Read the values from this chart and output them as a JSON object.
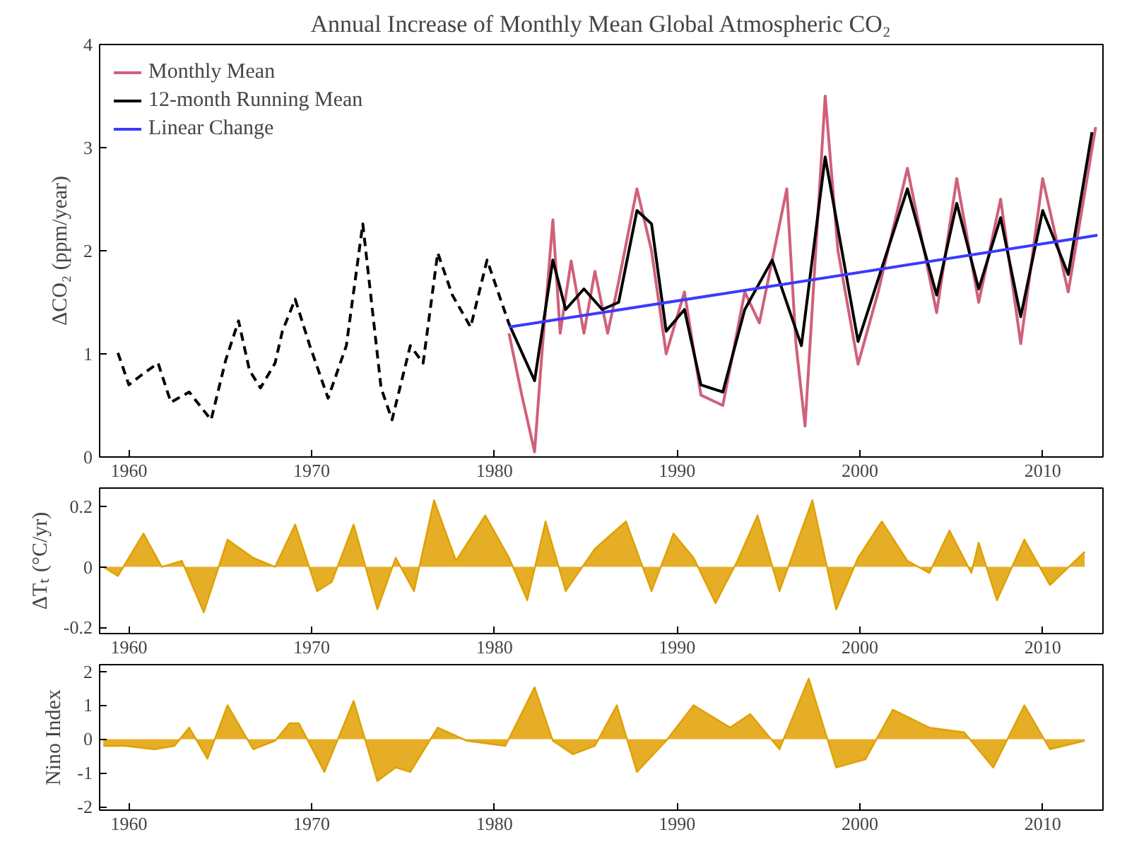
{
  "chart_data": [
    {
      "type": "line",
      "title": "Annual Increase of Monthly Mean Global Atmospheric CO₂",
      "ylabel": "ΔCO₂ (ppm/year)",
      "xlim": [
        1958.4,
        2013.3
      ],
      "ylim": [
        0,
        4
      ],
      "xticks": [
        1960,
        1970,
        1980,
        1990,
        2000,
        2010
      ],
      "yticks": [
        0,
        1,
        2,
        3,
        4
      ],
      "legend": "top left",
      "grid": false,
      "series": [
        {
          "name": "Monthly Mean",
          "color": "#d0607a",
          "line_style": "solid",
          "x": [
            1980.8,
            1981.5,
            1982.2,
            1982.6,
            1983.2,
            1983.6,
            1984.2,
            1984.9,
            1985.5,
            1986.2,
            1986.8,
            1987.8,
            1988.6,
            1989.4,
            1990.4,
            1991.3,
            1992.5,
            1993.7,
            1994.5,
            1996.0,
            1996.5,
            1997.0,
            1998.1,
            1998.8,
            1999.9,
            2001.0,
            2002.6,
            2004.2,
            2005.3,
            2006.5,
            2007.7,
            2008.8,
            2010.0,
            2011.4,
            2012.9
          ],
          "values": [
            1.2,
            0.6,
            0.05,
            1.0,
            2.3,
            1.2,
            1.9,
            1.2,
            1.8,
            1.2,
            1.7,
            2.6,
            2.0,
            1.0,
            1.6,
            0.6,
            0.5,
            1.6,
            1.3,
            2.6,
            1.1,
            0.3,
            3.5,
            2.0,
            0.9,
            1.6,
            2.8,
            1.4,
            2.7,
            1.5,
            2.5,
            1.1,
            2.7,
            1.6,
            3.2
          ]
        },
        {
          "color": "#000000",
          "line_style": "dashed",
          "x": [
            1959.4,
            1960.0,
            1960.8,
            1961.6,
            1962.3,
            1963.3,
            1964.5,
            1965.3,
            1966.0,
            1966.6,
            1967.2,
            1968.0,
            1968.4,
            1969.1,
            1969.9,
            1970.9,
            1971.9,
            1972.8,
            1973.8,
            1974.4,
            1975.4,
            1976.1,
            1976.9,
            1977.7,
            1978.7,
            1979.6,
            1980.8
          ],
          "values": [
            1.01,
            0.7,
            0.81,
            0.91,
            0.53,
            0.63,
            0.36,
            0.94,
            1.32,
            0.84,
            0.67,
            0.91,
            1.22,
            1.53,
            1.08,
            0.57,
            1.08,
            2.26,
            0.67,
            0.36,
            1.08,
            0.91,
            1.98,
            1.57,
            1.26,
            1.91,
            1.29
          ]
        },
        {
          "name": "12-month Running Mean",
          "color": "#000000",
          "line_style": "solid",
          "x": [
            1980.8,
            1982.2,
            1983.2,
            1983.9,
            1984.9,
            1985.9,
            1986.8,
            1987.8,
            1988.6,
            1989.4,
            1990.4,
            1991.3,
            1992.5,
            1993.7,
            1995.2,
            1996.8,
            1998.1,
            1999.9,
            2002.6,
            2004.2,
            2005.3,
            2006.5,
            2007.7,
            2008.8,
            2010.0,
            2011.4,
            2012.7
          ],
          "values": [
            1.29,
            0.74,
            1.91,
            1.43,
            1.63,
            1.43,
            1.5,
            2.39,
            2.26,
            1.22,
            1.43,
            0.7,
            0.63,
            1.43,
            1.91,
            1.08,
            2.91,
            1.12,
            2.6,
            1.57,
            2.46,
            1.63,
            2.32,
            1.36,
            2.39,
            1.77,
            3.15
          ]
        },
        {
          "name": "Linear Change",
          "color": "#3a3aff",
          "line_style": "solid",
          "x": [
            1980.8,
            2013.0
          ],
          "values": [
            1.26,
            2.15
          ]
        }
      ]
    },
    {
      "type": "area",
      "ylabel": "ΔTₜ (°C/yr)",
      "xlim": [
        1958.4,
        2013.3
      ],
      "ylim": [
        -0.22,
        0.26
      ],
      "xticks": [
        1960,
        1970,
        1980,
        1990,
        2000,
        2010
      ],
      "yticks": [
        -0.2,
        0,
        0.2
      ],
      "grid": false,
      "series": [
        {
          "color": "#e0a000",
          "x": [
            1958.6,
            1959.4,
            1960.8,
            1961.8,
            1962.9,
            1964.1,
            1965.4,
            1966.8,
            1968.0,
            1969.1,
            1970.3,
            1971.1,
            1972.3,
            1973.6,
            1974.6,
            1975.6,
            1976.7,
            1977.9,
            1979.5,
            1980.8,
            1981.8,
            1982.8,
            1983.9,
            1985.5,
            1987.2,
            1988.6,
            1989.8,
            1990.9,
            1992.1,
            1993.3,
            1994.4,
            1995.6,
            1997.4,
            1998.7,
            1999.9,
            2001.2,
            2002.6,
            2003.8,
            2004.9,
            2006.1,
            2006.5,
            2007.5,
            2009.0,
            2010.4,
            2012.3
          ],
          "values": [
            0,
            -0.03,
            0.11,
            0,
            0.02,
            -0.15,
            0.09,
            0.03,
            0,
            0.14,
            -0.08,
            -0.05,
            0.14,
            -0.14,
            0.03,
            -0.08,
            0.22,
            0.02,
            0.17,
            0.03,
            -0.11,
            0.15,
            -0.08,
            0.06,
            0.15,
            -0.08,
            0.11,
            0.03,
            -0.12,
            0.02,
            0.17,
            -0.08,
            0.22,
            -0.14,
            0.03,
            0.15,
            0.02,
            -0.02,
            0.12,
            -0.02,
            0.08,
            -0.11,
            0.09,
            -0.06,
            0.05
          ]
        }
      ]
    },
    {
      "type": "area",
      "ylabel": "Nino Index",
      "xlim": [
        1958.4,
        2013.3
      ],
      "ylim": [
        -2.1,
        2.2
      ],
      "xticks": [
        1960,
        1970,
        1980,
        1990,
        2000,
        2010
      ],
      "yticks": [
        -2,
        -1,
        0,
        1,
        2
      ],
      "grid": false,
      "series": [
        {
          "color": "#e0a000",
          "x": [
            1958.6,
            1959.8,
            1961.4,
            1962.5,
            1963.3,
            1964.3,
            1965.4,
            1966.8,
            1968.0,
            1968.8,
            1969.3,
            1970.7,
            1972.3,
            1973.6,
            1974.6,
            1975.4,
            1976.9,
            1978.5,
            1980.6,
            1982.2,
            1983.2,
            1984.3,
            1985.5,
            1986.7,
            1987.8,
            1989.4,
            1990.9,
            1992.9,
            1994.0,
            1995.6,
            1997.2,
            1998.7,
            2000.3,
            2001.8,
            2003.8,
            2005.7,
            2007.3,
            2009.0,
            2010.4,
            2012.3
          ],
          "values": [
            -0.2,
            -0.2,
            -0.3,
            -0.2,
            0.34,
            -0.58,
            1.0,
            -0.3,
            -0.05,
            0.47,
            0.47,
            -0.97,
            1.13,
            -1.24,
            -0.84,
            -0.97,
            0.34,
            -0.05,
            -0.2,
            1.53,
            -0.05,
            -0.45,
            -0.2,
            1.0,
            -0.97,
            -0.05,
            1.0,
            0.34,
            0.74,
            -0.3,
            1.79,
            -0.84,
            -0.6,
            0.87,
            0.34,
            0.2,
            -0.84,
            1.0,
            -0.3,
            -0.05
          ]
        }
      ]
    }
  ]
}
